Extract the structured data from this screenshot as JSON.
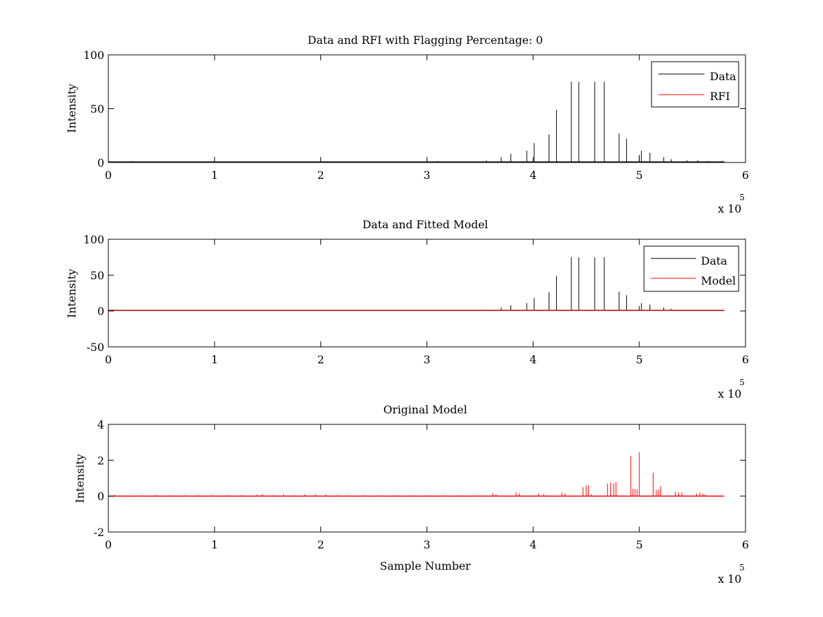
{
  "chart_data": [
    {
      "type": "line",
      "title": "Data and RFI with Flagging Percentage: 0",
      "xlabel": "",
      "ylabel": "Intensity",
      "xlim": [
        0,
        6
      ],
      "ylim": [
        0,
        100
      ],
      "x_ticks": [
        "0",
        "1",
        "2",
        "3",
        "4",
        "5",
        "6"
      ],
      "y_ticks": [
        "0",
        "50",
        "100"
      ],
      "x_exponent": {
        "base": "x 10",
        "power": "5"
      },
      "legend_position": "top-right",
      "grid": false,
      "series": [
        {
          "name": "Data",
          "color": "#000000",
          "style": "spikes",
          "baseline": 0.5,
          "x": [
            0.05,
            0.22,
            1.9,
            2.05,
            2.2,
            2.35,
            2.5,
            2.65,
            2.8,
            2.95,
            3.1,
            3.25,
            3.4,
            3.56,
            3.7,
            3.79,
            3.94,
            4.01,
            4.15,
            4.22,
            4.36,
            4.43,
            4.58,
            4.67,
            4.81,
            4.88,
            5.0,
            5.02,
            5.1,
            5.23,
            5.3,
            5.45,
            5.55,
            5.65,
            5.78
          ],
          "values": [
            1,
            1.5,
            1,
            1,
            1,
            1,
            1,
            1,
            1,
            1,
            1.5,
            1,
            1,
            2,
            5,
            8,
            11,
            18,
            26,
            49,
            75,
            75,
            75,
            75,
            27,
            22,
            7,
            11,
            9,
            5,
            3,
            2,
            2,
            1.5,
            1.5
          ]
        },
        {
          "name": "RFI",
          "color": "#ff0000",
          "style": "line",
          "x": [
            0,
            5.8
          ],
          "values": [
            0,
            0
          ]
        }
      ]
    },
    {
      "type": "line",
      "title": "Data and Fitted Model",
      "xlabel": "",
      "ylabel": "Intensity",
      "xlim": [
        0,
        6
      ],
      "ylim": [
        -50,
        100
      ],
      "x_ticks": [
        "0",
        "1",
        "2",
        "3",
        "4",
        "5",
        "6"
      ],
      "y_ticks": [
        "-50",
        "0",
        "50",
        "100"
      ],
      "x_exponent": {
        "base": "x 10",
        "power": "5"
      },
      "legend_position": "top-right",
      "grid": false,
      "series": [
        {
          "name": "Data",
          "color": "#000000",
          "style": "spikes",
          "baseline": 1,
          "x": [
            3.56,
            3.7,
            3.79,
            3.94,
            4.01,
            4.15,
            4.22,
            4.36,
            4.43,
            4.58,
            4.67,
            4.81,
            4.88,
            5.0,
            5.02,
            5.1,
            5.23,
            5.3
          ],
          "values": [
            2,
            5,
            8,
            11,
            18,
            26,
            49,
            75,
            75,
            75,
            75,
            27,
            22,
            7,
            11,
            9,
            5,
            3
          ]
        },
        {
          "name": "Model",
          "color": "#ff0000",
          "style": "line",
          "x": [
            0,
            5.8
          ],
          "values": [
            1,
            1
          ]
        }
      ]
    },
    {
      "type": "line",
      "title": "Original Model",
      "xlabel": "Sample Number",
      "ylabel": "Intensity",
      "xlim": [
        0,
        6
      ],
      "ylim": [
        -2,
        4
      ],
      "x_ticks": [
        "0",
        "1",
        "2",
        "3",
        "4",
        "5",
        "6"
      ],
      "y_ticks": [
        "-2",
        "0",
        "2",
        "4"
      ],
      "x_exponent": {
        "base": "x 10",
        "power": "5"
      },
      "legend_position": "none",
      "grid": false,
      "series": [
        {
          "color": "#ff0000",
          "style": "spikes",
          "baseline": 0,
          "x": [
            0.06,
            0.32,
            0.45,
            0.58,
            0.72,
            0.85,
            0.98,
            1.12,
            1.25,
            1.4,
            1.45,
            1.55,
            1.65,
            1.75,
            1.85,
            1.95,
            2.05,
            2.15,
            2.25,
            2.4,
            2.55,
            2.7,
            2.85,
            3.0,
            3.15,
            3.3,
            3.45,
            3.62,
            3.65,
            3.84,
            3.87,
            4.05,
            4.1,
            4.27,
            4.3,
            4.47,
            4.5,
            4.52,
            4.55,
            4.7,
            4.73,
            4.76,
            4.78,
            4.92,
            4.94,
            4.96,
            4.98,
            5.0,
            5.13,
            5.16,
            5.18,
            5.2,
            5.34,
            5.37,
            5.4,
            5.54,
            5.57,
            5.6,
            5.62
          ],
          "values": [
            0.08,
            0.05,
            0.05,
            0.05,
            0.05,
            0.05,
            0.05,
            0.05,
            0.05,
            0.08,
            0.1,
            0.05,
            0.1,
            0.05,
            0.1,
            0.1,
            0.1,
            0.05,
            0.05,
            0.05,
            0.05,
            0.05,
            0.05,
            0.05,
            0.05,
            0.05,
            0.05,
            0.15,
            0.1,
            0.2,
            0.15,
            0.15,
            0.1,
            0.2,
            0.15,
            0.5,
            0.6,
            0.6,
            0.1,
            0.7,
            0.75,
            0.7,
            0.8,
            2.25,
            0.4,
            0.4,
            0.4,
            2.45,
            1.3,
            0.35,
            0.35,
            0.55,
            0.25,
            0.2,
            0.2,
            0.15,
            0.2,
            0.15,
            0.1
          ]
        }
      ]
    }
  ]
}
